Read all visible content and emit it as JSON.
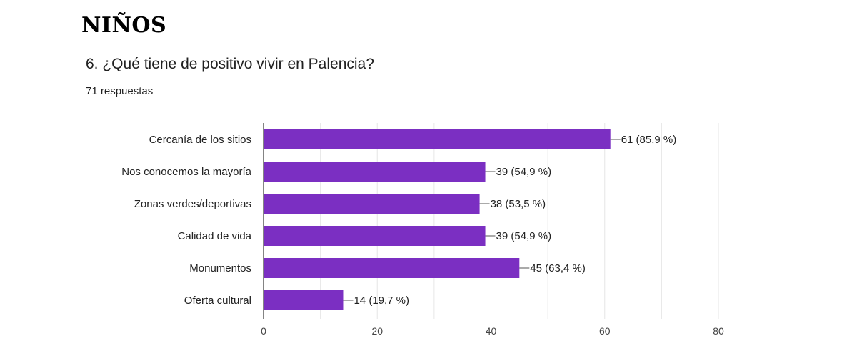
{
  "header": {
    "heading": "NIÑOS",
    "question": "6. ¿Qué tiene de positivo vivir en Palencia?",
    "responses": "71 respuestas"
  },
  "colors": {
    "bar": "#7b2fc2",
    "grid": "#e6e6e6",
    "axis": "#333333"
  },
  "chart_data": {
    "type": "bar",
    "orientation": "horizontal",
    "categories": [
      "Cercanía de los sitios",
      "Nos conocemos la mayoría",
      "Zonas verdes/deportivas",
      "Calidad de vida",
      "Monumentos",
      "Oferta cultural"
    ],
    "values": [
      61,
      39,
      38,
      39,
      45,
      14
    ],
    "labels": [
      "61 (85,9 %)",
      "39 (54,9 %)",
      "38 (53,5 %)",
      "39 (54,9 %)",
      "45 (63,4 %)",
      "14 (19,7 %)"
    ],
    "xlim": [
      0,
      80
    ],
    "xticks": [
      0,
      20,
      40,
      60,
      80
    ],
    "grid": true,
    "legend": "none"
  }
}
